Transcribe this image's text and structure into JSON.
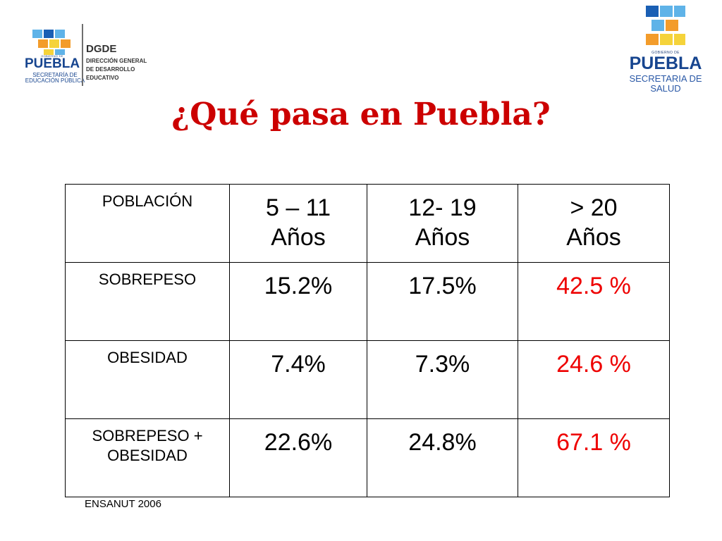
{
  "logos": {
    "left": {
      "gobierno": "GOBIERNO DE",
      "puebla": "PUEBLA",
      "secretaria_line1": "SECRETARÍA DE",
      "secretaria_line2": "EDUCACIÓN PÚBLICA",
      "dgde": "DGDE",
      "dgde_lines": [
        "DIRECCIÓN GENERAL",
        "DE DESARROLLO",
        "EDUCATIVO"
      ]
    },
    "right": {
      "gobierno": "GOBIERNO DE",
      "puebla": "PUEBLA",
      "secretaria_line1": "SECRETARIA DE",
      "secretaria_line2": "SALUD"
    },
    "colors": {
      "blue": "#1a5fb4",
      "light_blue": "#5fb3e8",
      "orange": "#f39c2b",
      "yellow": "#f5d33a",
      "navy": "#17458f"
    }
  },
  "title": "¿Qué pasa en Puebla?",
  "table": {
    "header": [
      "POBLACIÓN",
      "5 – 11\nAños",
      "12- 19\nAños",
      "> 20\nAños"
    ],
    "rows": [
      {
        "label": "SOBREPESO",
        "values": [
          "15.2%",
          "17.5%",
          "42.5 %"
        ]
      },
      {
        "label": "OBESIDAD",
        "values": [
          "7.4%",
          "7.3%",
          "24.6 %"
        ]
      },
      {
        "label": "SOBREPESO +\nOBESIDAD",
        "values": [
          "22.6%",
          "24.8%",
          "67.1 %"
        ]
      }
    ],
    "highlight_color": "#ee0000"
  },
  "source": "ENSANUT 2006"
}
